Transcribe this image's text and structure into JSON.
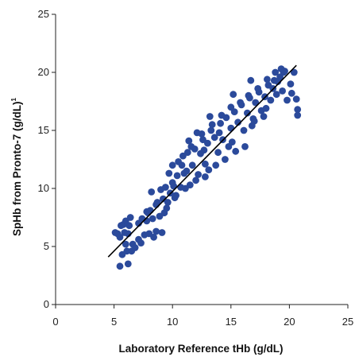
{
  "chart_data": {
    "type": "scatter",
    "xlabel": "Laboratory Reference tHb (g/dL)",
    "ylabel": "SpHb from Pronto-7 (g/dL)",
    "ylabel_superscript": "1",
    "xlim": [
      0,
      25
    ],
    "ylim": [
      0,
      25
    ],
    "x_ticks": [
      "0",
      "5",
      "10",
      "15",
      "20",
      "25"
    ],
    "y_ticks": [
      "0",
      "5",
      "10",
      "15",
      "20",
      "25"
    ],
    "grid": false,
    "marker_color": "#2b4a9b",
    "line_color": "#000000",
    "series": [
      {
        "points": [
          [
            5.3,
            6.1
          ],
          [
            5.5,
            5.8
          ],
          [
            5.9,
            6.2
          ],
          [
            6.0,
            5.2
          ],
          [
            6.1,
            4.6
          ],
          [
            5.7,
            4.3
          ],
          [
            5.5,
            3.3
          ],
          [
            6.2,
            3.5
          ],
          [
            6.5,
            4.6
          ],
          [
            6.3,
            6.8
          ],
          [
            5.8,
            6.9
          ],
          [
            6.2,
            6.1
          ],
          [
            5.1,
            6.2
          ],
          [
            6.4,
            7.5
          ],
          [
            6.6,
            5.2
          ],
          [
            7.3,
            5.3
          ],
          [
            7.6,
            6.0
          ],
          [
            8.0,
            6.1
          ],
          [
            8.4,
            5.8
          ],
          [
            8.2,
            9.7
          ],
          [
            8.6,
            6.3
          ],
          [
            9.1,
            6.2
          ],
          [
            7.1,
            7.0
          ],
          [
            7.4,
            7.4
          ],
          [
            7.8,
            8.0
          ],
          [
            7.8,
            7.2
          ],
          [
            8.1,
            8.1
          ],
          [
            8.3,
            7.4
          ],
          [
            8.6,
            8.6
          ],
          [
            8.9,
            7.6
          ],
          [
            9.2,
            9.1
          ],
          [
            9.5,
            8.3
          ],
          [
            9.0,
            9.9
          ],
          [
            9.4,
            10.1
          ],
          [
            9.8,
            9.6
          ],
          [
            10.0,
            10.5
          ],
          [
            10.2,
            9.2
          ],
          [
            10.4,
            11.1
          ],
          [
            10.7,
            10.1
          ],
          [
            10.5,
            12.3
          ],
          [
            10.9,
            12.8
          ],
          [
            11.2,
            11.5
          ],
          [
            11.5,
            10.3
          ],
          [
            11.3,
            13.1
          ],
          [
            11.7,
            12.0
          ],
          [
            11.9,
            13.4
          ],
          [
            12.2,
            11.2
          ],
          [
            12.4,
            13.0
          ],
          [
            12.6,
            14.2
          ],
          [
            12.1,
            14.8
          ],
          [
            12.8,
            12.1
          ],
          [
            13.0,
            13.9
          ],
          [
            13.3,
            15.0
          ],
          [
            13.1,
            11.6
          ],
          [
            13.6,
            14.4
          ],
          [
            13.9,
            13.1
          ],
          [
            14.1,
            15.6
          ],
          [
            14.3,
            14.2
          ],
          [
            14.6,
            16.1
          ],
          [
            14.8,
            13.6
          ],
          [
            15.0,
            15.2
          ],
          [
            15.3,
            16.6
          ],
          [
            15.1,
            14.0
          ],
          [
            15.6,
            15.7
          ],
          [
            15.9,
            17.2
          ],
          [
            16.1,
            15.0
          ],
          [
            16.4,
            16.5
          ],
          [
            16.6,
            17.8
          ],
          [
            16.9,
            16.0
          ],
          [
            17.1,
            17.4
          ],
          [
            17.4,
            18.3
          ],
          [
            17.6,
            16.7
          ],
          [
            17.9,
            17.9
          ],
          [
            18.2,
            18.9
          ],
          [
            18.4,
            17.6
          ],
          [
            18.7,
            19.3
          ],
          [
            18.9,
            18.1
          ],
          [
            19.2,
            19.6
          ],
          [
            19.4,
            18.4
          ],
          [
            19.6,
            20.1
          ],
          [
            20.1,
            19.0
          ],
          [
            20.4,
            20.0
          ],
          [
            20.6,
            17.7
          ],
          [
            20.7,
            16.8
          ],
          [
            20.7,
            16.3
          ],
          [
            19.0,
            19.2
          ],
          [
            19.3,
            20.3
          ],
          [
            19.5,
            20.0
          ],
          [
            18.6,
            18.6
          ],
          [
            17.8,
            16.2
          ],
          [
            17.0,
            15.8
          ],
          [
            16.2,
            13.6
          ],
          [
            15.4,
            13.2
          ],
          [
            14.5,
            12.5
          ],
          [
            13.7,
            12.0
          ],
          [
            12.8,
            11.0
          ],
          [
            12.0,
            10.7
          ],
          [
            11.1,
            10.0
          ],
          [
            10.3,
            9.4
          ],
          [
            9.6,
            8.8
          ],
          [
            8.7,
            8.8
          ],
          [
            9.7,
            11.3
          ],
          [
            10.8,
            12.0
          ],
          [
            11.6,
            13.6
          ],
          [
            12.5,
            14.7
          ],
          [
            13.4,
            15.5
          ],
          [
            14.2,
            16.3
          ],
          [
            15.0,
            17.0
          ],
          [
            15.8,
            17.4
          ],
          [
            16.5,
            18.0
          ],
          [
            17.3,
            18.6
          ],
          [
            18.1,
            19.4
          ],
          [
            18.8,
            20.0
          ],
          [
            16.7,
            19.3
          ],
          [
            15.2,
            18.1
          ],
          [
            13.2,
            16.2
          ],
          [
            11.4,
            14.1
          ],
          [
            10.0,
            12.0
          ],
          [
            7.1,
            5.6
          ],
          [
            6.8,
            4.9
          ],
          [
            6.0,
            7.2
          ],
          [
            5.6,
            6.8
          ],
          [
            7.9,
            7.9
          ],
          [
            9.3,
            7.9
          ],
          [
            20.2,
            18.2
          ],
          [
            19.8,
            17.6
          ],
          [
            18.0,
            16.9
          ],
          [
            16.8,
            15.4
          ],
          [
            14.0,
            14.8
          ],
          [
            12.7,
            13.3
          ],
          [
            11.0,
            11.3
          ],
          [
            10.1,
            10.2
          ]
        ]
      }
    ],
    "fit_line": {
      "x": [
        4.5,
        20.6
      ],
      "y": [
        4.1,
        20.6
      ]
    }
  }
}
